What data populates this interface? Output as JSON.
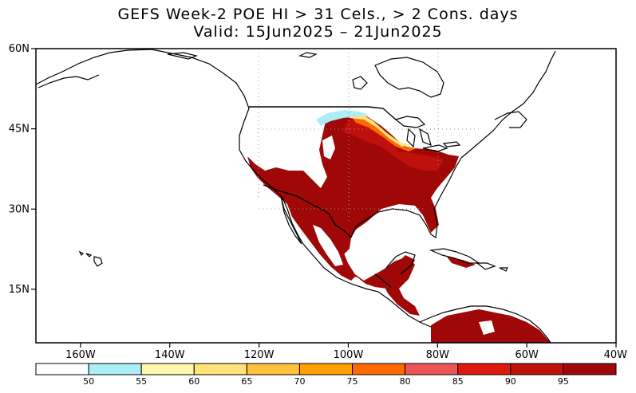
{
  "title": {
    "line1": "GEFS Week-2 POE HI > 31 Cels., > 2 Cons. days",
    "line2": "Valid: 15Jun2025 – 21Jun2025"
  },
  "map": {
    "lon_range": [
      -170,
      -40
    ],
    "lat_range": [
      5,
      60
    ],
    "lat_ticks": [
      {
        "value": 60,
        "label": "60N"
      },
      {
        "value": 45,
        "label": "45N"
      },
      {
        "value": 30,
        "label": "30N"
      },
      {
        "value": 15,
        "label": "15N"
      }
    ],
    "lon_ticks": [
      {
        "value": -160,
        "label": "160W"
      },
      {
        "value": -140,
        "label": "140W"
      },
      {
        "value": -120,
        "label": "120W"
      },
      {
        "value": -100,
        "label": "100W"
      },
      {
        "value": -80,
        "label": "80W"
      },
      {
        "value": -60,
        "label": "60W"
      },
      {
        "value": -40,
        "label": "40W"
      }
    ],
    "gridlines": "dotted at 45N, 30N, 120W, 100W, 80W over North America"
  },
  "colorbar": {
    "bins": [
      {
        "color": "#ffffff",
        "label": "50"
      },
      {
        "color": "#aaeef6",
        "label": "55"
      },
      {
        "color": "#fff7ad",
        "label": "60"
      },
      {
        "color": "#ffe27a",
        "label": "65"
      },
      {
        "color": "#ffc13c",
        "label": "70"
      },
      {
        "color": "#ffa000",
        "label": "75"
      },
      {
        "color": "#ff6a00",
        "label": "80"
      },
      {
        "color": "#ee5656",
        "label": "85"
      },
      {
        "color": "#dd1a10",
        "label": "90"
      },
      {
        "color": "#c0100c",
        "label": "95"
      },
      {
        "color": "#a00808",
        "label": ""
      }
    ]
  },
  "palette": {
    "dark_red": "#a00808",
    "red": "#c0100c",
    "orange": "#ff6a00",
    "light_orange": "#ffa000",
    "yellow": "#ffe27a",
    "light_yellow": "#fff7ad",
    "cyan": "#aaeef6",
    "coast": "#000000"
  }
}
